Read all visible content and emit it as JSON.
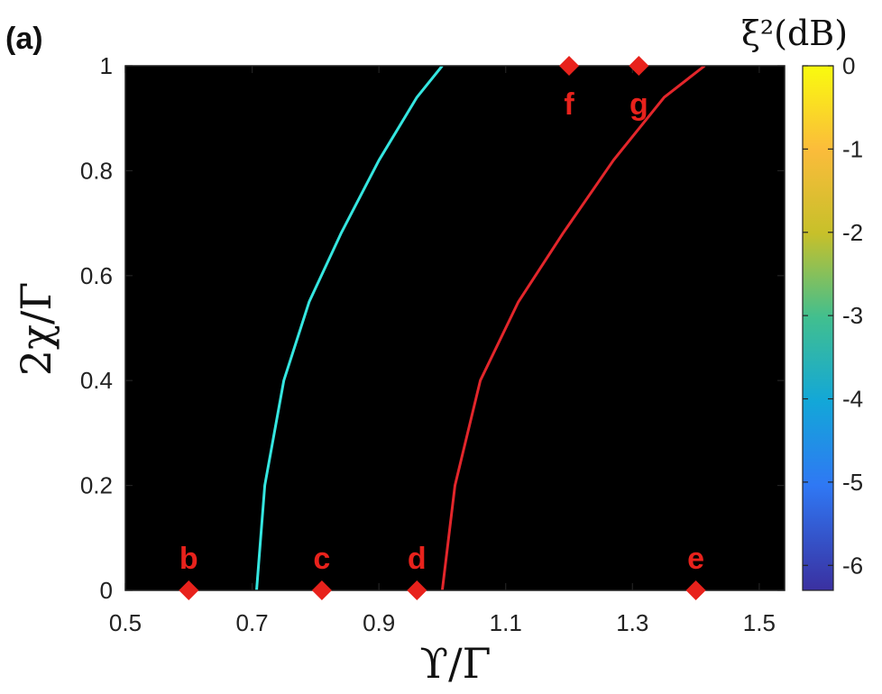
{
  "panel_label": "(a)",
  "chart_data": {
    "type": "heatmap",
    "xlabel": "ϒ/Γ",
    "ylabel": "2χ/Γ",
    "xlim": [
      0.5,
      1.54
    ],
    "ylim": [
      0,
      1
    ],
    "x_ticks": [
      "0.5",
      "0.7",
      "0.9",
      "1.1",
      "1.3",
      "1.5"
    ],
    "y_ticks": [
      "0",
      "0.2",
      "0.4",
      "0.6",
      "0.8",
      "1"
    ],
    "colorbar": {
      "label": "ξ²(dB)",
      "range": [
        -6.3,
        0
      ],
      "ticks": [
        "0",
        "-1",
        "-2",
        "-3",
        "-4",
        "-5",
        "-6"
      ],
      "colormap": "parula"
    },
    "curves": [
      {
        "color": "#35e6e0",
        "x": [
          0.707,
          0.72,
          0.75,
          0.79,
          0.84,
          0.9,
          0.96,
          1.0
        ],
        "y": [
          0,
          0.2,
          0.4,
          0.55,
          0.68,
          0.82,
          0.94,
          1.0
        ]
      },
      {
        "color": "#e3262b",
        "x": [
          1.0,
          1.02,
          1.06,
          1.12,
          1.19,
          1.27,
          1.35,
          1.414
        ],
        "y": [
          0,
          0.2,
          0.4,
          0.55,
          0.68,
          0.82,
          0.94,
          1.0
        ]
      }
    ],
    "markers": [
      {
        "label": "b",
        "x": 0.6,
        "y": 0
      },
      {
        "label": "c",
        "x": 0.81,
        "y": 0
      },
      {
        "label": "d",
        "x": 0.96,
        "y": 0
      },
      {
        "label": "e",
        "x": 1.4,
        "y": 0
      },
      {
        "label": "f",
        "x": 1.2,
        "y": 1
      },
      {
        "label": "g",
        "x": 1.31,
        "y": 1
      }
    ],
    "marker_color": "#e8221c"
  }
}
